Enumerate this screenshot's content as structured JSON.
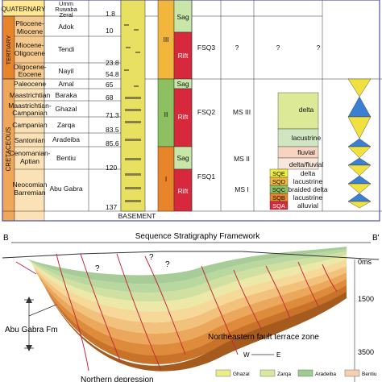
{
  "table": {
    "eras": [
      "TERTIARY",
      "CRETACEOUS"
    ],
    "quaternary": "QUATERNARY",
    "epochs": [
      "Pliocene-",
      "Miocene",
      "Miocene-",
      "Oligocene",
      "Oligocene-",
      "Eocene",
      "Paleocene",
      "Maastrichtian",
      "Maastrichtian-",
      "Campanian",
      "Campanian",
      "Santonian",
      "Cenomanian-",
      "Aptian",
      "Neocomian",
      "Barremian"
    ],
    "formations": [
      "Umm",
      "Ruwaba",
      "Zeral",
      "Adok",
      "Tendi",
      "Nayil",
      "Amal",
      "Baraka",
      "Ghazal",
      "Zarqa",
      "Aradeiba",
      "Bentiu",
      "Abu Gabra"
    ],
    "ages": [
      "1.8",
      "10",
      "23.8",
      "54.8",
      "65",
      "68",
      "71.3",
      "83.5",
      "85.6",
      "120",
      "137"
    ],
    "basement": "BASEMENT",
    "cycles": [
      "III",
      "II",
      "I"
    ],
    "phases": [
      "Sag",
      "Rift",
      "Sag",
      "Rift",
      "Sag",
      "Rift"
    ],
    "sequences": [
      "FSQ3",
      "FSQ2",
      "FSQ1"
    ],
    "subsequences": [
      "MS III",
      "MS II",
      "MS I"
    ],
    "unknown": "?",
    "envs": [
      "delta",
      "lacustrine",
      "fluvial",
      "delta/fluvial",
      "delta",
      "lacustrine",
      "braided delta",
      "lacustrine",
      "alluvial"
    ],
    "sq_codes": [
      "SQE",
      "SQD",
      "SQC",
      "SQB",
      "SQA"
    ]
  },
  "section": {
    "left_label": "B",
    "right_label": "B'",
    "title": "Sequence Stratigraphy Framework",
    "depths": [
      "0ms",
      "1500",
      "3500"
    ],
    "fm_label": "Abu Gabra Fm",
    "zone_label": "Northeastern  fault terrace zone",
    "west": "W",
    "east": "E",
    "depression": "Northern depression",
    "question": "?"
  },
  "legend": [
    "Ghazal",
    "Zarqa",
    "Aradeiba",
    "Bentiu"
  ],
  "colors": {
    "tertiary": "#e8842a",
    "cretaceous": "#f0a050",
    "sag": "#c8e6a8",
    "rift": "#d8283c",
    "frame": "#5050a0"
  }
}
